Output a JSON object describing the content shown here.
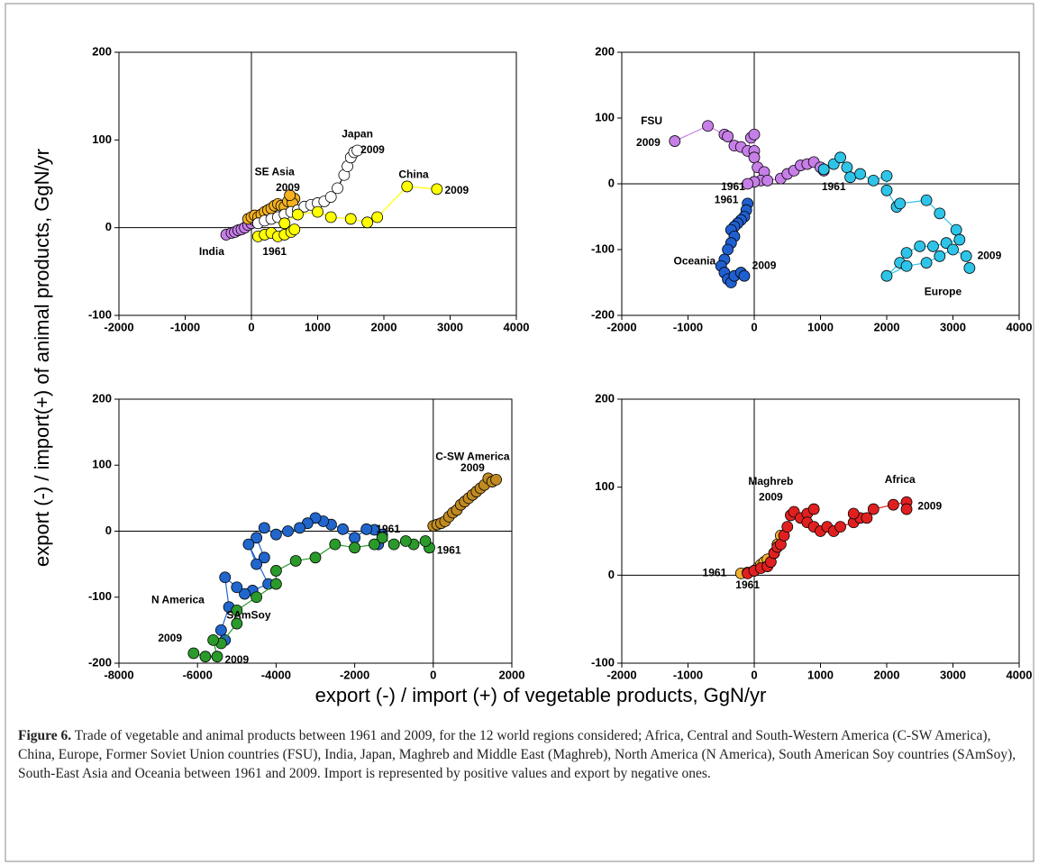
{
  "ylabel": "export (-) / import(+)  of animal products, GgN/yr",
  "xlabel": "export (-) / import (+) of vegetable products, GgN/yr",
  "caption": {
    "label": "Figure 6.",
    "text": "Trade of vegetable and animal products between 1961 and 2009, for the 12 world regions considered; Africa, Central and South-Western America (C-SW America), China, Europe, Former Soviet Union countries (FSU), India, Japan, Maghreb and Middle East (Maghreb), North America (N America), South American Soy countries (SAmSoy), South-East Asia and Oceania between 1961 and 2009. Import is represented by positive values and export by negative ones."
  },
  "chart_data": [
    {
      "type": "line",
      "markers": true,
      "xlim": [
        -2000,
        4000
      ],
      "xticks": [
        -2000,
        -1000,
        0,
        1000,
        2000,
        3000,
        4000
      ],
      "ylim": [
        -100,
        200
      ],
      "yticks": [
        -100,
        0,
        100,
        200
      ],
      "series": [
        {
          "name": "India",
          "color": "#c77fe8",
          "x": [
            -380,
            -300,
            -250,
            -200,
            -150,
            -100,
            -50,
            0,
            50,
            100
          ],
          "values": [
            -8,
            -6,
            -5,
            -3,
            -2,
            0,
            3,
            5,
            8,
            6
          ]
        },
        {
          "name": "SE Asia",
          "color": "#f5b120",
          "x": [
            -50,
            0,
            50,
            100,
            150,
            200,
            250,
            300,
            350,
            400,
            450,
            500,
            550,
            600,
            650,
            620,
            580
          ],
          "values": [
            10,
            12,
            14,
            12,
            15,
            18,
            20,
            22,
            25,
            27,
            25,
            24,
            30,
            35,
            33,
            28,
            37
          ]
        },
        {
          "name": "Japan",
          "color": "#ffffff",
          "line_color": "#000000",
          "x": [
            100,
            200,
            300,
            400,
            500,
            600,
            700,
            800,
            900,
            1000,
            1100,
            1200,
            1300,
            1400,
            1450,
            1500,
            1550,
            1600
          ],
          "values": [
            5,
            8,
            10,
            12,
            15,
            18,
            20,
            24,
            26,
            28,
            30,
            35,
            45,
            60,
            70,
            80,
            86,
            88
          ]
        },
        {
          "name": "China",
          "color": "#ffff00",
          "x": [
            100,
            200,
            300,
            400,
            500,
            600,
            650,
            500,
            700,
            1000,
            1200,
            1500,
            1750,
            1900,
            2350,
            2800
          ],
          "values": [
            -10,
            -8,
            -6,
            -10,
            -8,
            -5,
            -2,
            5,
            15,
            18,
            12,
            10,
            6,
            12,
            47,
            44
          ]
        }
      ],
      "annotations": [
        {
          "text": "Japan",
          "x": 1600,
          "y": 106
        },
        {
          "text": "2009",
          "x": 1830,
          "y": 88
        },
        {
          "text": "SE Asia",
          "x": 350,
          "y": 63
        },
        {
          "text": "2009",
          "x": 550,
          "y": 45
        },
        {
          "text": "China",
          "x": 2450,
          "y": 60
        },
        {
          "text": "2009",
          "x": 3100,
          "y": 42
        },
        {
          "text": "India",
          "x": -600,
          "y": -28
        },
        {
          "text": "1961",
          "x": 350,
          "y": -28
        }
      ]
    },
    {
      "type": "line",
      "markers": true,
      "xlim": [
        -2000,
        4000
      ],
      "xticks": [
        -2000,
        -1000,
        0,
        1000,
        2000,
        3000,
        4000
      ],
      "ylim": [
        -200,
        200
      ],
      "yticks": [
        -200,
        -100,
        0,
        100,
        200
      ],
      "series": [
        {
          "name": "FSU",
          "color": "#c77fe8",
          "x": [
            -1200,
            -700,
            -450,
            -400,
            -300,
            -200,
            -100,
            -50,
            0,
            0,
            0,
            50,
            150,
            100,
            0,
            -100,
            200,
            400,
            500,
            600,
            700,
            800,
            900,
            1000,
            1050
          ],
          "values": [
            65,
            88,
            75,
            72,
            58,
            56,
            50,
            70,
            75,
            50,
            40,
            25,
            18,
            5,
            3,
            0,
            5,
            8,
            15,
            20,
            28,
            30,
            33,
            25,
            20
          ]
        },
        {
          "name": "Oceania",
          "color": "#1f5fd0",
          "x": [
            -100,
            -120,
            -150,
            -200,
            -250,
            -300,
            -350,
            -300,
            -350,
            -400,
            -450,
            -500,
            -450,
            -400,
            -350,
            -300,
            -200,
            -150
          ],
          "values": [
            -30,
            -40,
            -50,
            -55,
            -60,
            -65,
            -70,
            -80,
            -90,
            -100,
            -115,
            -125,
            -135,
            -145,
            -150,
            -140,
            -135,
            -140
          ]
        },
        {
          "name": "Europe",
          "color": "#2ec4e8",
          "x": [
            1050,
            1200,
            1300,
            1400,
            1450,
            1600,
            1800,
            2000,
            2000,
            2150,
            2200,
            2600,
            2800,
            3050,
            3100,
            2900,
            2700,
            2500,
            2300,
            2200,
            2000,
            2300,
            2600,
            2800,
            3000,
            3200,
            3250
          ],
          "values": [
            22,
            30,
            40,
            25,
            10,
            15,
            5,
            12,
            -10,
            -35,
            -30,
            -25,
            -45,
            -70,
            -85,
            -90,
            -95,
            -95,
            -105,
            -120,
            -140,
            -125,
            -120,
            -110,
            -100,
            -110,
            -128
          ]
        }
      ],
      "annotations": [
        {
          "text": "FSU",
          "x": -1550,
          "y": 95
        },
        {
          "text": "2009",
          "x": -1600,
          "y": 62
        },
        {
          "text": "1961",
          "x": -320,
          "y": -5
        },
        {
          "text": "1961",
          "x": 1200,
          "y": -5
        },
        {
          "text": "1961",
          "x": -420,
          "y": -25
        },
        {
          "text": "Oceania",
          "x": -900,
          "y": -118
        },
        {
          "text": "2009",
          "x": 150,
          "y": -125
        },
        {
          "text": "2009",
          "x": 3550,
          "y": -110
        },
        {
          "text": "Europe",
          "x": 2850,
          "y": -165
        }
      ]
    },
    {
      "type": "line",
      "markers": true,
      "xlim": [
        -8000,
        2000
      ],
      "xticks": [
        -8000,
        -6000,
        -4000,
        -2000,
        0,
        2000
      ],
      "ylim": [
        -200,
        200
      ],
      "yticks": [
        -200,
        -100,
        0,
        100,
        200
      ],
      "series": [
        {
          "name": "C-SW America",
          "color": "#c08a20",
          "x": [
            0,
            100,
            200,
            300,
            400,
            500,
            600,
            700,
            800,
            900,
            1000,
            1100,
            1200,
            1300,
            1400,
            1500,
            1600
          ],
          "values": [
            8,
            10,
            12,
            15,
            22,
            28,
            32,
            40,
            45,
            50,
            55,
            60,
            65,
            70,
            80,
            75,
            78
          ]
        },
        {
          "name": "N America",
          "color": "#2066cc",
          "x": [
            -1400,
            -1300,
            -1500,
            -1700,
            -2000,
            -2300,
            -2600,
            -2800,
            -3000,
            -3200,
            -3400,
            -3700,
            -4000,
            -4300,
            -4500,
            -4300,
            -4500,
            -4700,
            -4200,
            -4600,
            -4800,
            -5000,
            -5300,
            -5200,
            -5400,
            -5300
          ],
          "values": [
            -20,
            -5,
            2,
            3,
            -10,
            3,
            10,
            15,
            20,
            12,
            5,
            0,
            -5,
            5,
            -10,
            -40,
            -50,
            -20,
            -80,
            -90,
            -95,
            -85,
            -70,
            -115,
            -150,
            -165
          ]
        },
        {
          "name": "SAmSoy",
          "color": "#2a9a2a",
          "x": [
            -100,
            -200,
            -500,
            -700,
            -1000,
            -1300,
            -1500,
            -2000,
            -2500,
            -3000,
            -3500,
            -4000,
            -4000,
            -4500,
            -5000,
            -5000,
            -5400,
            -5600,
            -5500,
            -5800,
            -6100
          ],
          "values": [
            -25,
            -15,
            -20,
            -15,
            -20,
            -10,
            -20,
            -25,
            -20,
            -40,
            -45,
            -60,
            -80,
            -100,
            -120,
            -140,
            -170,
            -165,
            -190,
            -190,
            -185
          ]
        }
      ],
      "annotations": [
        {
          "text": "C-SW America",
          "x": 1000,
          "y": 112
        },
        {
          "text": "2009",
          "x": 1000,
          "y": 95
        },
        {
          "text": "1961",
          "x": -1150,
          "y": 2
        },
        {
          "text": "1961",
          "x": 400,
          "y": -30
        },
        {
          "text": "N America",
          "x": -6500,
          "y": -105
        },
        {
          "text": "SAmSoy",
          "x": -4700,
          "y": -128
        },
        {
          "text": "2009",
          "x": -6700,
          "y": -163
        },
        {
          "text": "2009",
          "x": -5000,
          "y": -196
        }
      ]
    },
    {
      "type": "line",
      "markers": true,
      "xlim": [
        -2000,
        4000
      ],
      "xticks": [
        -2000,
        -1000,
        0,
        1000,
        2000,
        3000,
        4000
      ],
      "ylim": [
        -100,
        200
      ],
      "yticks": [
        -100,
        0,
        100,
        200
      ],
      "series": [
        {
          "name": "Maghreb",
          "color": "#f0b030",
          "x": [
            -200,
            -100,
            0,
            50,
            100,
            150,
            200,
            300,
            350,
            400
          ],
          "values": [
            2,
            3,
            5,
            8,
            12,
            15,
            18,
            25,
            35,
            45
          ]
        },
        {
          "name": "Africa",
          "color": "#e02020",
          "x": [
            -100,
            0,
            100,
            200,
            250,
            300,
            350,
            400,
            450,
            500,
            550,
            600,
            700,
            800,
            900,
            800,
            900,
            1000,
            1100,
            1200,
            1300,
            1500,
            1600,
            1500,
            1700,
            1800,
            2100,
            2300,
            2300
          ],
          "values": [
            2,
            5,
            8,
            10,
            15,
            25,
            32,
            35,
            45,
            55,
            68,
            72,
            65,
            70,
            75,
            60,
            55,
            50,
            55,
            50,
            55,
            60,
            65,
            70,
            65,
            75,
            80,
            83,
            75
          ]
        }
      ],
      "annotations": [
        {
          "text": "Maghreb",
          "x": 250,
          "y": 106
        },
        {
          "text": "2009",
          "x": 250,
          "y": 88
        },
        {
          "text": "Africa",
          "x": 2200,
          "y": 108
        },
        {
          "text": "2009",
          "x": 2650,
          "y": 78
        },
        {
          "text": "1961",
          "x": -600,
          "y": 2
        },
        {
          "text": "1961",
          "x": -100,
          "y": -12
        }
      ]
    }
  ]
}
